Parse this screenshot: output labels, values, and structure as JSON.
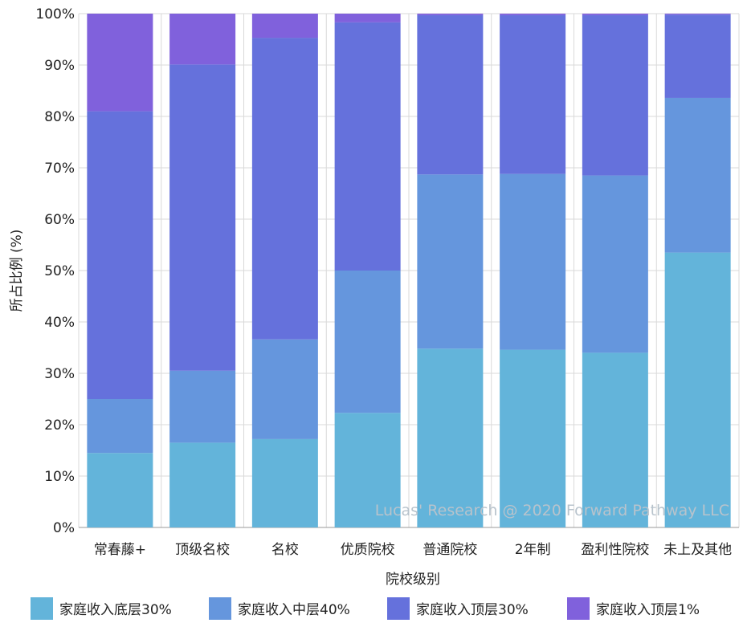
{
  "chart_data": {
    "type": "bar",
    "stacked": true,
    "percent": true,
    "title": "",
    "xlabel": "院校级别",
    "ylabel": "所占比例 (%)",
    "ylim": [
      0,
      100
    ],
    "yticks": [
      "0%",
      "10%",
      "20%",
      "30%",
      "40%",
      "50%",
      "60%",
      "70%",
      "80%",
      "90%",
      "100%"
    ],
    "categories": [
      "常春藤+",
      "顶级名校",
      "名校",
      "优质院校",
      "普通院校",
      "2年制",
      "盈利性院校",
      "未上及其他"
    ],
    "series": [
      {
        "name": "家庭收入底层30%",
        "color": "#63b4da",
        "values": [
          14.5,
          16.5,
          17.2,
          22.3,
          34.8,
          34.6,
          34.0,
          53.5
        ]
      },
      {
        "name": "家庭收入中层40%",
        "color": "#6596dd",
        "values": [
          10.5,
          14.0,
          19.4,
          27.7,
          33.9,
          34.2,
          34.5,
          30.1
        ]
      },
      {
        "name": "家庭收入顶层30%",
        "color": "#6571dc",
        "values": [
          56.0,
          59.6,
          58.7,
          48.3,
          31.0,
          30.9,
          31.2,
          16.2
        ]
      },
      {
        "name": "家庭收入顶层1%",
        "color": "#8061dc",
        "values": [
          19.0,
          9.9,
          4.7,
          1.7,
          0.3,
          0.3,
          0.3,
          0.2
        ]
      }
    ],
    "legend": "bottom",
    "grid": true,
    "watermark": "Lucas' Research @ 2020 Forward Pathway LLC"
  }
}
